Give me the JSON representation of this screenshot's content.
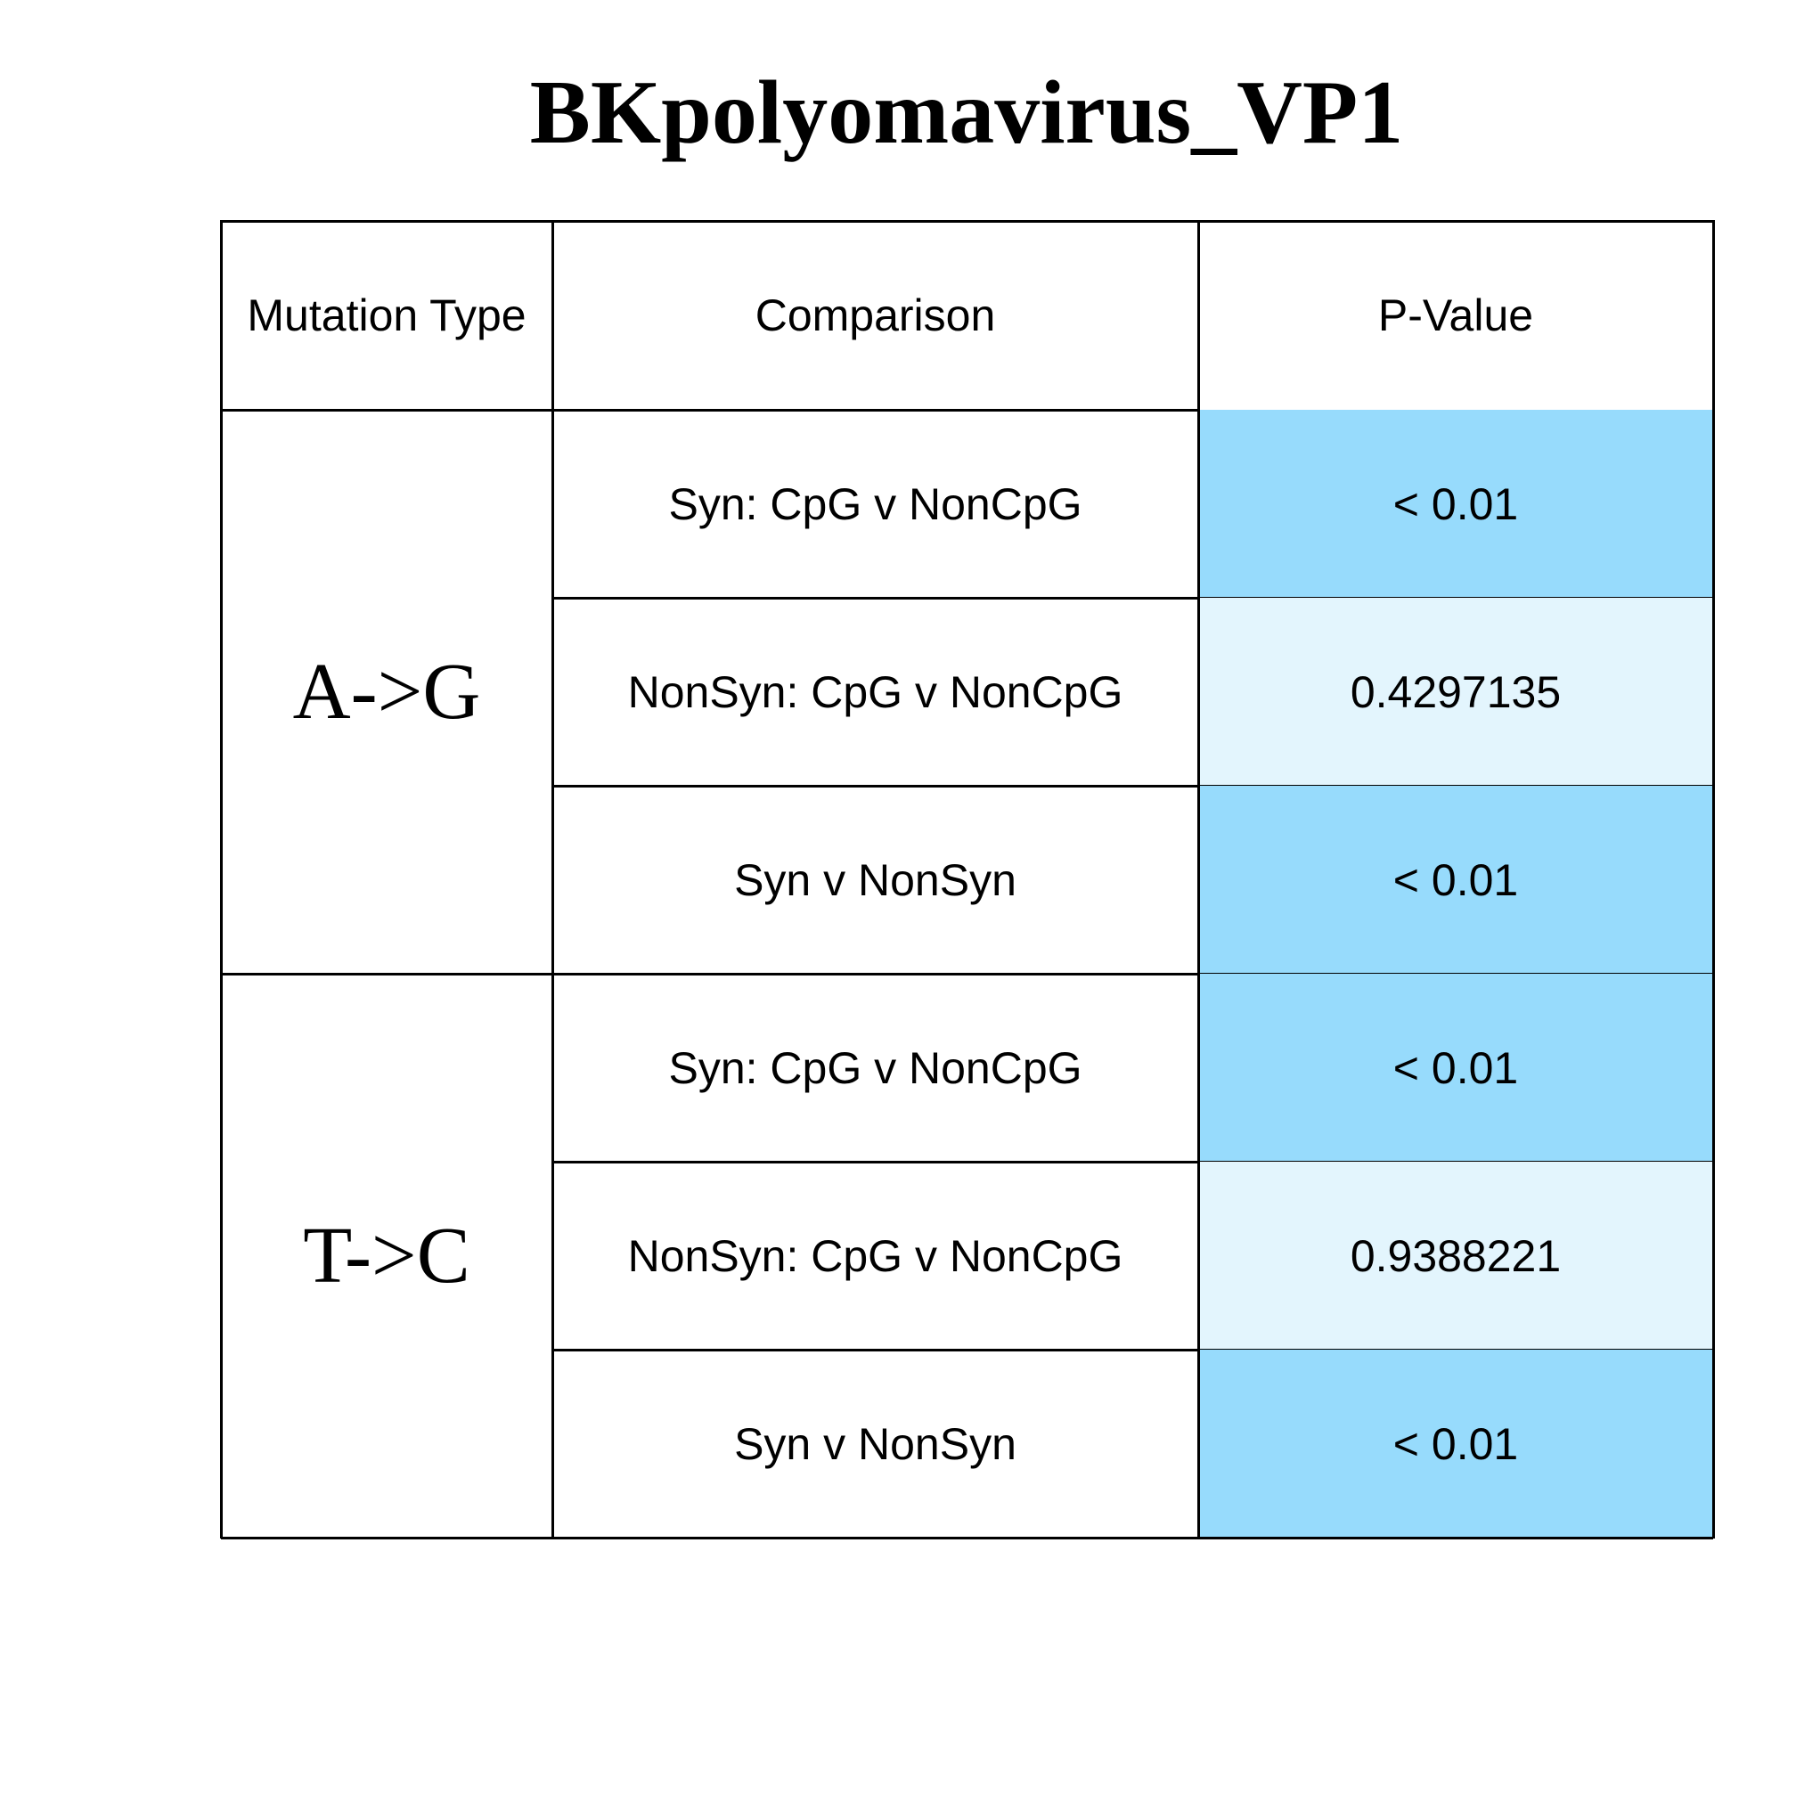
{
  "chart_data": {
    "type": "table",
    "title": "BKpolyomavirus_VP1",
    "columns": [
      "Mutation Type",
      "Comparison",
      "P-Value"
    ],
    "groups": [
      {
        "mutation_type": "A->G",
        "rows": [
          {
            "comparison": "Syn: CpG v NonCpG",
            "p_value": "< 0.01",
            "significant": true
          },
          {
            "comparison": "NonSyn: CpG v NonCpG",
            "p_value": "0.4297135",
            "significant": false
          },
          {
            "comparison": "Syn v NonSyn",
            "p_value": "< 0.01",
            "significant": true
          }
        ]
      },
      {
        "mutation_type": "T->C",
        "rows": [
          {
            "comparison": "Syn: CpG v NonCpG",
            "p_value": "< 0.01",
            "significant": true
          },
          {
            "comparison": "NonSyn: CpG v NonCpG",
            "p_value": "0.9388221",
            "significant": false
          },
          {
            "comparison": "Syn v NonSyn",
            "p_value": "< 0.01",
            "significant": true
          }
        ]
      }
    ],
    "colors": {
      "significant": "#97dbfc",
      "not_significant": "#e3f5fd",
      "border": "#000000"
    }
  }
}
